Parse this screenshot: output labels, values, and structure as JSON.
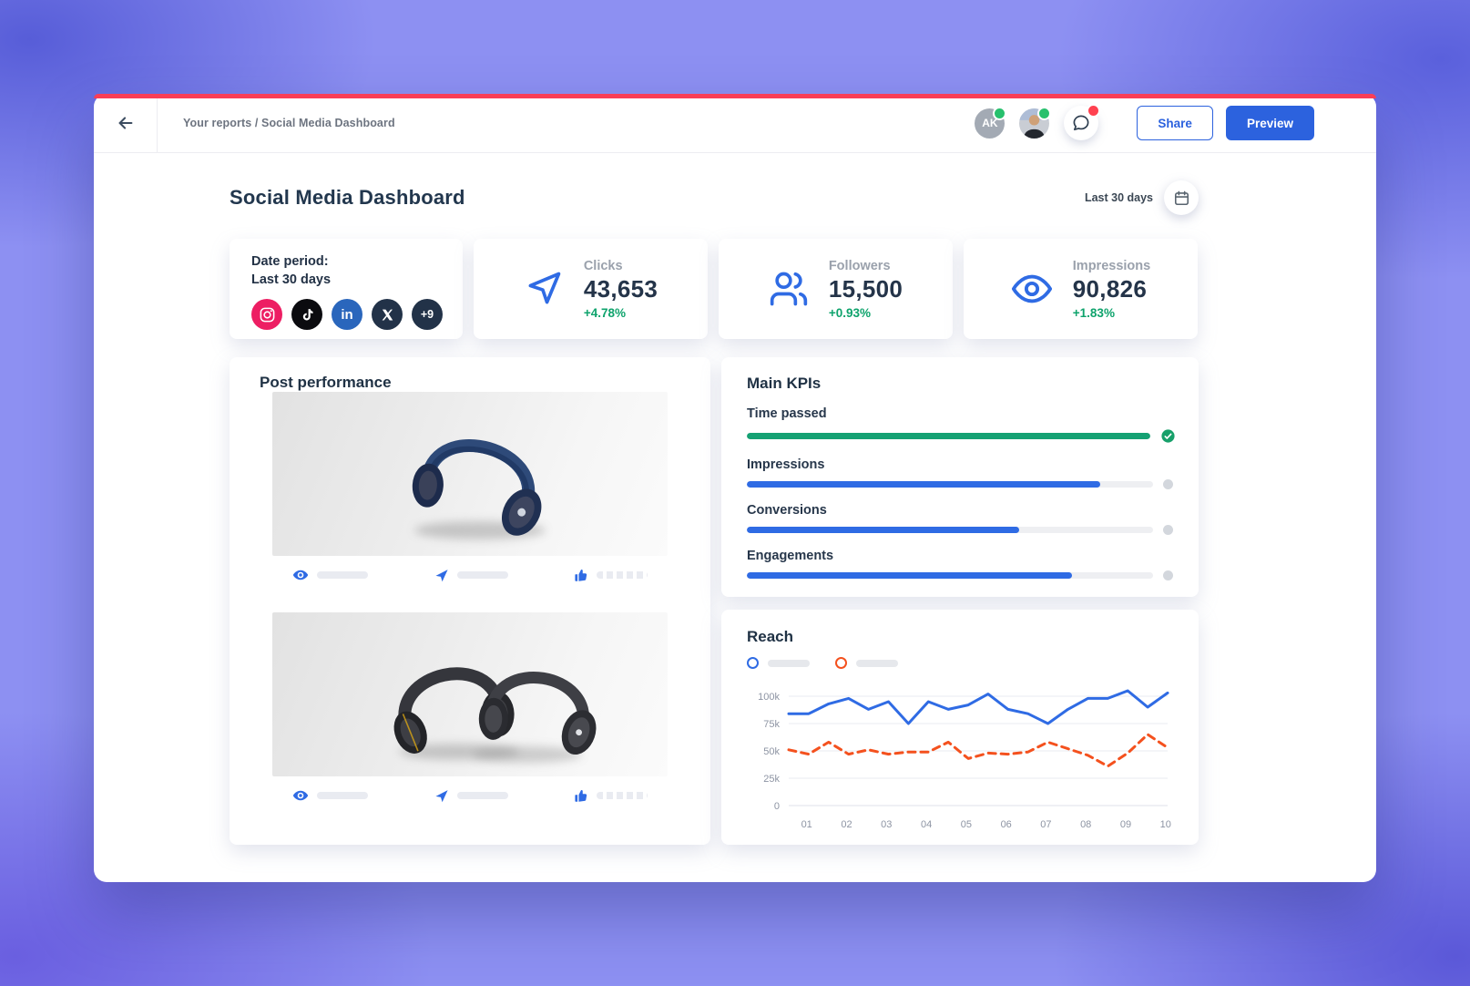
{
  "topbar": {
    "breadcrumb": "Your reports / Social Media Dashboard",
    "avatar_initials": "AK",
    "share_label": "Share",
    "preview_label": "Preview"
  },
  "header": {
    "title": "Social Media Dashboard",
    "date_range": "Last 30 days"
  },
  "date_period_card": {
    "label": "Date period:",
    "value": "Last 30 days",
    "networks": [
      "instagram",
      "tiktok",
      "linkedin",
      "x"
    ],
    "more_badge": "+9"
  },
  "stat_cards": [
    {
      "icon": "cursor-click-icon",
      "label": "Clicks",
      "value": "43,653",
      "delta": "+4.78%"
    },
    {
      "icon": "followers-icon",
      "label": "Followers",
      "value": "15,500",
      "delta": "+0.93%"
    },
    {
      "icon": "eye-icon",
      "label": "Impressions",
      "value": "90,826",
      "delta": "+1.83%"
    }
  ],
  "post_performance": {
    "title": "Post performance",
    "posts": [
      {
        "image": "navy-headphones",
        "metric_icons": [
          "views-eye",
          "share-send",
          "like-thumb"
        ]
      },
      {
        "image": "black-headphones-pair",
        "metric_icons": [
          "views-eye",
          "share-send",
          "like-thumb"
        ]
      }
    ]
  },
  "main_kpis": {
    "title": "Main KPIs",
    "items": [
      {
        "label": "Time passed",
        "percent": 100,
        "state": "complete"
      },
      {
        "label": "Impressions",
        "percent": 87,
        "state": "in-progress"
      },
      {
        "label": "Conversions",
        "percent": 67,
        "state": "in-progress"
      },
      {
        "label": "Engagements",
        "percent": 80,
        "state": "in-progress"
      }
    ]
  },
  "reach": {
    "title": "Reach",
    "legend_labels_hidden": true
  },
  "chart_data": {
    "type": "line",
    "title": "Reach",
    "x_tick_labels": [
      "01",
      "02",
      "03",
      "04",
      "05",
      "06",
      "07",
      "08",
      "09",
      "10"
    ],
    "y_tick_labels": [
      "0",
      "25k",
      "50k",
      "75k",
      "100k"
    ],
    "ylim_k": [
      0,
      110
    ],
    "grid": "horizontal",
    "legend_position": "top-left",
    "series": [
      {
        "name": "series-1",
        "color": "#2f6be4",
        "style": "solid",
        "values_k": [
          84,
          84,
          93,
          98,
          88,
          95,
          75,
          95,
          88,
          92,
          102,
          88,
          84,
          75,
          88,
          98,
          98,
          105,
          90,
          103
        ]
      },
      {
        "name": "series-2",
        "color": "#f4511e",
        "style": "dashed",
        "values_k": [
          51,
          47,
          58,
          47,
          51,
          47,
          49,
          49,
          58,
          43,
          48,
          47,
          49,
          58,
          52,
          46,
          36,
          48,
          65,
          53
        ]
      }
    ]
  },
  "colors": {
    "accent_blue": "#2f6be4",
    "success_green": "#15a173",
    "delta_green": "#0ea36c",
    "series_orange": "#f4511e",
    "top_strip_red": "#fa3e56"
  }
}
